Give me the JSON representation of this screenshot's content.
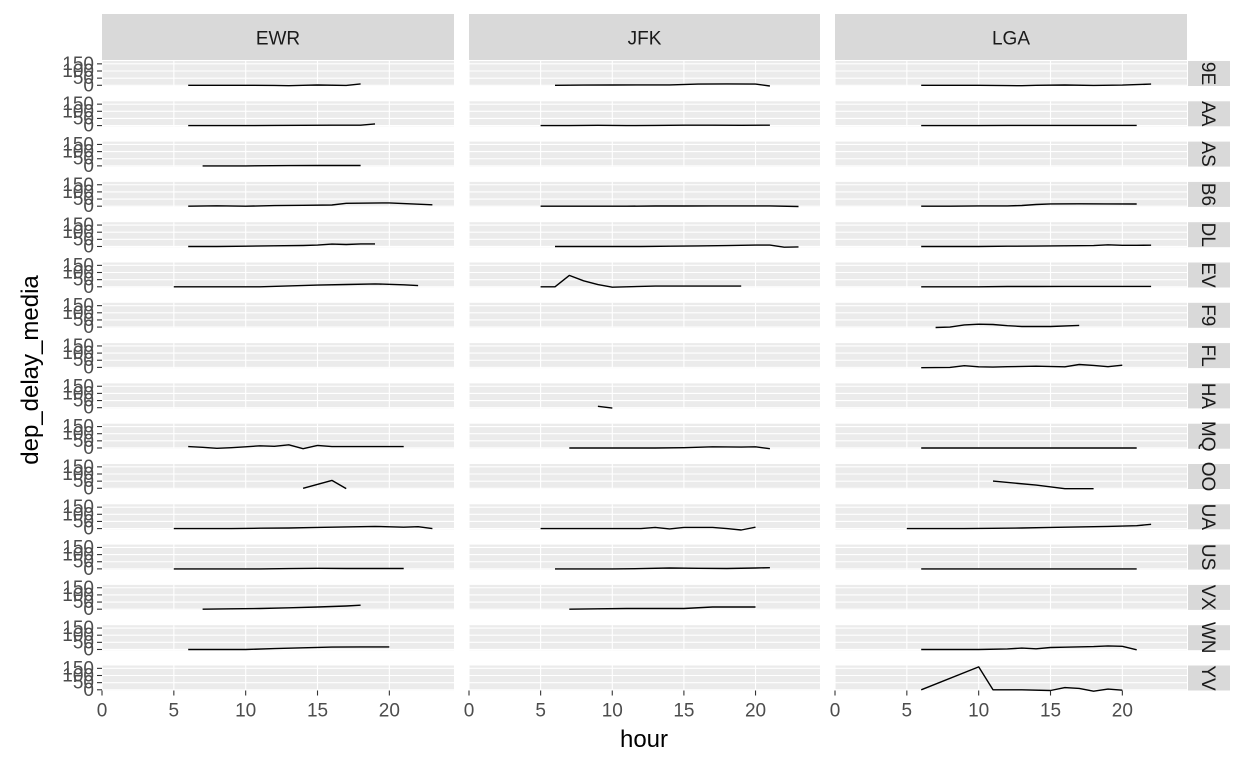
{
  "chart_data": {
    "type": "line",
    "facet_type": "grid",
    "xlabel": "hour",
    "ylabel": "dep_delay_media",
    "x_ticks": [
      0,
      5,
      10,
      15,
      20
    ],
    "y_ticks": [
      0,
      50,
      100,
      150
    ],
    "y_tick_labels": [
      "0",
      "50",
      "100",
      "150"
    ],
    "xlim": [
      0,
      24.5
    ],
    "ylim": [
      -5,
      170
    ],
    "grid": true,
    "columns": [
      "EWR",
      "JFK",
      "LGA"
    ],
    "rows": [
      "9E",
      "AA",
      "AS",
      "B6",
      "DL",
      "EV",
      "F9",
      "FL",
      "HA",
      "MQ",
      "OO",
      "UA",
      "US",
      "VX",
      "WN",
      "YV"
    ],
    "colors": {
      "panel_bg": "#ebebeb",
      "grid_major": "#ffffff",
      "strip_bg": "#d9d9d9",
      "line": "#000000",
      "tick_text": "#4d4d4d",
      "strip_text": "#1a1a1a"
    },
    "panels": [
      {
        "row": "9E",
        "col": "EWR",
        "x": [
          6,
          8,
          10,
          12,
          13,
          14,
          15,
          17,
          18
        ],
        "y": [
          0,
          0,
          0,
          -1,
          -3,
          0,
          2,
          -1,
          10
        ]
      },
      {
        "row": "9E",
        "col": "JFK",
        "x": [
          6,
          8,
          10,
          12,
          14,
          16,
          18,
          20,
          21
        ],
        "y": [
          0,
          1,
          2,
          3,
          3,
          8,
          10,
          8,
          -5
        ]
      },
      {
        "row": "9E",
        "col": "LGA",
        "x": [
          6,
          8,
          10,
          12,
          13,
          14,
          16,
          18,
          20,
          22
        ],
        "y": [
          0,
          0,
          0,
          -2,
          -3,
          0,
          2,
          -1,
          1,
          8
        ]
      },
      {
        "row": "AA",
        "col": "EWR",
        "x": [
          6,
          8,
          10,
          12,
          14,
          16,
          18,
          19
        ],
        "y": [
          0,
          0,
          0,
          1,
          2,
          3,
          3,
          12
        ]
      },
      {
        "row": "AA",
        "col": "JFK",
        "x": [
          5,
          7,
          9,
          11,
          13,
          15,
          17,
          19,
          21
        ],
        "y": [
          0,
          0,
          2,
          0,
          1,
          3,
          3,
          2,
          3
        ]
      },
      {
        "row": "AA",
        "col": "LGA",
        "x": [
          6,
          8,
          10,
          12,
          14,
          16,
          18,
          20,
          21
        ],
        "y": [
          0,
          0,
          0,
          1,
          1,
          1,
          1,
          1,
          1
        ]
      },
      {
        "row": "AS",
        "col": "EWR",
        "x": [
          7,
          10,
          13,
          15,
          18
        ],
        "y": [
          0,
          0,
          2,
          3,
          3
        ]
      },
      {
        "row": "B6",
        "col": "EWR",
        "x": [
          6,
          8,
          10,
          12,
          14,
          16,
          17,
          20,
          21,
          23
        ],
        "y": [
          0,
          3,
          0,
          4,
          6,
          8,
          20,
          23,
          18,
          10
        ]
      },
      {
        "row": "B6",
        "col": "JFK",
        "x": [
          5,
          7,
          9,
          11,
          13,
          15,
          17,
          19,
          21,
          23
        ],
        "y": [
          0,
          0,
          0,
          0,
          1,
          1,
          2,
          2,
          2,
          -2
        ]
      },
      {
        "row": "B6",
        "col": "LGA",
        "x": [
          6,
          8,
          10,
          12,
          13,
          14,
          15,
          17,
          19,
          21
        ],
        "y": [
          0,
          0,
          2,
          2,
          5,
          12,
          16,
          17,
          16,
          15
        ]
      },
      {
        "row": "DL",
        "col": "EWR",
        "x": [
          6,
          8,
          10,
          12,
          14,
          15,
          16,
          17,
          18,
          19
        ],
        "y": [
          0,
          0,
          2,
          5,
          7,
          10,
          17,
          14,
          18,
          18
        ]
      },
      {
        "row": "DL",
        "col": "JFK",
        "x": [
          6,
          8,
          10,
          12,
          14,
          16,
          18,
          19,
          20,
          21,
          22,
          23
        ],
        "y": [
          0,
          0,
          0,
          0,
          2,
          4,
          6,
          8,
          10,
          10,
          -5,
          -3
        ]
      },
      {
        "row": "DL",
        "col": "LGA",
        "x": [
          6,
          8,
          10,
          12,
          14,
          16,
          18,
          19,
          20,
          21,
          22
        ],
        "y": [
          0,
          0,
          0,
          2,
          3,
          5,
          6,
          12,
          8,
          8,
          9
        ]
      },
      {
        "row": "EV",
        "col": "EWR",
        "x": [
          5,
          7,
          9,
          11,
          13,
          15,
          17,
          19,
          21,
          22
        ],
        "y": [
          0,
          0,
          0,
          0,
          6,
          12,
          16,
          20,
          14,
          8
        ]
      },
      {
        "row": "EV",
        "col": "JFK",
        "x": [
          5,
          6,
          7,
          8,
          9,
          10,
          11,
          13,
          15,
          17,
          19
        ],
        "y": [
          0,
          0,
          80,
          42,
          15,
          -3,
          0,
          5,
          5,
          5,
          5
        ]
      },
      {
        "row": "EV",
        "col": "LGA",
        "x": [
          6,
          8,
          10,
          12,
          14,
          16,
          18,
          20,
          22
        ],
        "y": [
          0,
          0,
          0,
          2,
          2,
          3,
          3,
          3,
          3
        ]
      },
      {
        "row": "F9",
        "col": "LGA",
        "x": [
          7,
          8,
          9,
          10,
          11,
          12,
          13,
          15,
          17
        ],
        "y": [
          -3,
          0,
          15,
          20,
          18,
          10,
          4,
          4,
          12
        ]
      },
      {
        "row": "FL",
        "col": "LGA",
        "x": [
          6,
          8,
          9,
          10,
          11,
          12,
          14,
          16,
          17,
          18,
          19,
          20
        ],
        "y": [
          -2,
          0,
          12,
          4,
          2,
          5,
          8,
          4,
          20,
          14,
          5,
          15
        ]
      },
      {
        "row": "HA",
        "col": "JFK",
        "x": [
          9,
          10
        ],
        "y": [
          10,
          -3
        ]
      },
      {
        "row": "MQ",
        "col": "EWR",
        "x": [
          6,
          7,
          8,
          9,
          10,
          11,
          12,
          13,
          14,
          15,
          16,
          18,
          21
        ],
        "y": [
          10,
          5,
          -2,
          2,
          8,
          15,
          12,
          22,
          -5,
          18,
          10,
          10,
          10
        ]
      },
      {
        "row": "MQ",
        "col": "JFK",
        "x": [
          7,
          9,
          11,
          13,
          15,
          17,
          19,
          20,
          21
        ],
        "y": [
          0,
          0,
          0,
          0,
          2,
          8,
          6,
          8,
          -5
        ]
      },
      {
        "row": "MQ",
        "col": "LGA",
        "x": [
          6,
          8,
          10,
          12,
          14,
          16,
          18,
          20,
          21
        ],
        "y": [
          0,
          0,
          0,
          0,
          0,
          0,
          0,
          0,
          0
        ]
      },
      {
        "row": "OO",
        "col": "EWR",
        "x": [
          14,
          16,
          17
        ],
        "y": [
          0,
          55,
          -2
        ]
      },
      {
        "row": "OO",
        "col": "LGA",
        "x": [
          11,
          14,
          16,
          18
        ],
        "y": [
          50,
          22,
          -3,
          -3
        ]
      },
      {
        "row": "UA",
        "col": "EWR",
        "x": [
          5,
          7,
          9,
          11,
          13,
          15,
          17,
          19,
          21,
          22,
          23
        ],
        "y": [
          0,
          0,
          0,
          3,
          4,
          8,
          12,
          15,
          10,
          13,
          0
        ]
      },
      {
        "row": "UA",
        "col": "JFK",
        "x": [
          5,
          7,
          9,
          11,
          12,
          13,
          14,
          15,
          16,
          17,
          18,
          19,
          20
        ],
        "y": [
          0,
          0,
          0,
          0,
          0,
          8,
          -2,
          8,
          8,
          8,
          0,
          -10,
          10
        ]
      },
      {
        "row": "UA",
        "col": "LGA",
        "x": [
          5,
          7,
          9,
          11,
          13,
          15,
          17,
          19,
          21,
          22
        ],
        "y": [
          0,
          0,
          0,
          2,
          4,
          8,
          12,
          15,
          20,
          30
        ]
      },
      {
        "row": "US",
        "col": "EWR",
        "x": [
          5,
          7,
          9,
          11,
          13,
          15,
          17,
          19,
          21
        ],
        "y": [
          0,
          0,
          0,
          0,
          2,
          4,
          3,
          3,
          3
        ]
      },
      {
        "row": "US",
        "col": "JFK",
        "x": [
          6,
          8,
          10,
          12,
          14,
          16,
          18,
          20,
          21
        ],
        "y": [
          0,
          0,
          0,
          2,
          6,
          4,
          3,
          6,
          8
        ]
      },
      {
        "row": "US",
        "col": "LGA",
        "x": [
          6,
          8,
          10,
          12,
          14,
          16,
          18,
          20,
          21
        ],
        "y": [
          0,
          0,
          0,
          0,
          0,
          0,
          0,
          0,
          0
        ]
      },
      {
        "row": "VX",
        "col": "EWR",
        "x": [
          7,
          9,
          11,
          13,
          15,
          17,
          18
        ],
        "y": [
          0,
          3,
          5,
          10,
          15,
          22,
          28
        ]
      },
      {
        "row": "VX",
        "col": "JFK",
        "x": [
          7,
          9,
          11,
          13,
          15,
          17,
          19,
          20
        ],
        "y": [
          0,
          3,
          5,
          5,
          5,
          15,
          15,
          15
        ]
      },
      {
        "row": "WN",
        "col": "EWR",
        "x": [
          6,
          8,
          10,
          12,
          14,
          16,
          18,
          20
        ],
        "y": [
          0,
          0,
          0,
          6,
          12,
          17,
          18,
          18
        ]
      },
      {
        "row": "WN",
        "col": "LGA",
        "x": [
          6,
          8,
          10,
          12,
          13,
          14,
          15,
          16,
          18,
          19,
          20,
          21
        ],
        "y": [
          0,
          0,
          0,
          4,
          10,
          5,
          14,
          16,
          20,
          25,
          22,
          -2
        ]
      },
      {
        "row": "YV",
        "col": "LGA",
        "x": [
          6,
          10,
          11,
          13,
          15,
          16,
          17,
          18,
          19,
          20
        ],
        "y": [
          0,
          160,
          0,
          0,
          -5,
          15,
          10,
          -10,
          5,
          -3
        ]
      }
    ]
  }
}
